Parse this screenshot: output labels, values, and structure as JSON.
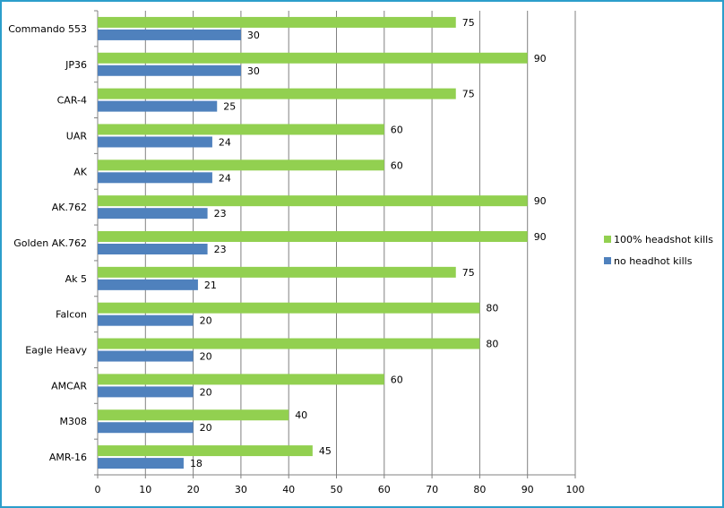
{
  "chart_data": {
    "type": "bar",
    "orientation": "horizontal",
    "categories": [
      "Commando 553",
      "JP36",
      "CAR-4",
      "UAR",
      "AK",
      "AK.762",
      "Golden AK.762",
      "Ak 5",
      "Falcon",
      "Eagle Heavy",
      "AMCAR",
      "M308",
      "AMR-16"
    ],
    "series": [
      {
        "name": "100% headshot kills",
        "color": "#92d050",
        "values": [
          75,
          90,
          75,
          60,
          60,
          90,
          90,
          75,
          80,
          80,
          60,
          40,
          45
        ]
      },
      {
        "name": "no headhot kills",
        "color": "#4f81bd",
        "values": [
          30,
          30,
          25,
          24,
          24,
          23,
          23,
          21,
          20,
          20,
          20,
          20,
          18
        ]
      }
    ],
    "xlim": [
      0,
      100
    ],
    "xticks": [
      0,
      10,
      20,
      30,
      40,
      50,
      60,
      70,
      80,
      90,
      100
    ],
    "grid": "vertical",
    "legend_position": "right",
    "title": "",
    "xlabel": "",
    "ylabel": ""
  }
}
